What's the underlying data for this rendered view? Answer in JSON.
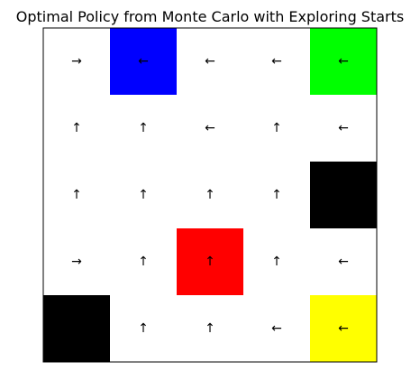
{
  "chart_data": {
    "type": "heatmap",
    "title": "Optimal Policy from Monte Carlo with Exploring Starts",
    "rows": 5,
    "cols": 5,
    "grid": false,
    "cells": [
      [
        {
          "color": "#ffffff",
          "arrow": "→"
        },
        {
          "color": "#0000ff",
          "arrow": "←"
        },
        {
          "color": "#ffffff",
          "arrow": "←"
        },
        {
          "color": "#ffffff",
          "arrow": "←"
        },
        {
          "color": "#00ff00",
          "arrow": "←"
        }
      ],
      [
        {
          "color": "#ffffff",
          "arrow": "↑"
        },
        {
          "color": "#ffffff",
          "arrow": "↑"
        },
        {
          "color": "#ffffff",
          "arrow": "←"
        },
        {
          "color": "#ffffff",
          "arrow": "↑"
        },
        {
          "color": "#ffffff",
          "arrow": "←"
        }
      ],
      [
        {
          "color": "#ffffff",
          "arrow": "↑"
        },
        {
          "color": "#ffffff",
          "arrow": "↑"
        },
        {
          "color": "#ffffff",
          "arrow": "↑"
        },
        {
          "color": "#ffffff",
          "arrow": "↑"
        },
        {
          "color": "#000000",
          "arrow": ""
        }
      ],
      [
        {
          "color": "#ffffff",
          "arrow": "→"
        },
        {
          "color": "#ffffff",
          "arrow": "↑"
        },
        {
          "color": "#ff0000",
          "arrow": "↑"
        },
        {
          "color": "#ffffff",
          "arrow": "↑"
        },
        {
          "color": "#ffffff",
          "arrow": "←"
        }
      ],
      [
        {
          "color": "#000000",
          "arrow": ""
        },
        {
          "color": "#ffffff",
          "arrow": "↑"
        },
        {
          "color": "#ffffff",
          "arrow": "↑"
        },
        {
          "color": "#ffffff",
          "arrow": "←"
        },
        {
          "color": "#ffff00",
          "arrow": "←"
        }
      ]
    ]
  }
}
